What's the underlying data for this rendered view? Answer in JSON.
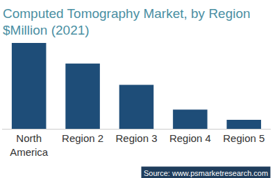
{
  "chart_data": {
    "type": "bar",
    "title": "Computed Tomography Market, by Region\n$Million (2021)",
    "categories": [
      "North America",
      "Region 2",
      "Region 3",
      "Region 4",
      "Region 5"
    ],
    "values": [
      125,
      95,
      64,
      28,
      13
    ],
    "color": "#1e4d78",
    "ylim": [
      0,
      125
    ],
    "grid": false,
    "tick_labels": "x",
    "source": "Source: www.psmarketresearch.com"
  }
}
